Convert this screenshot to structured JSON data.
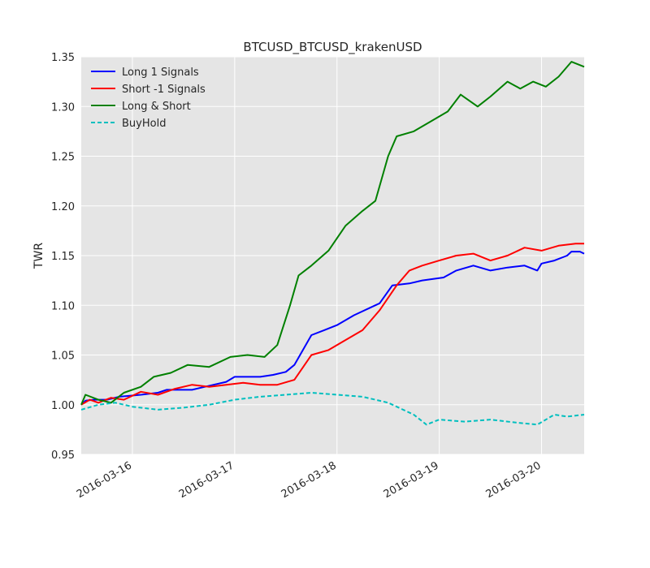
{
  "chart_data": {
    "type": "line",
    "title": "BTCUSD_BTCUSD_krakenUSD",
    "xlabel": "",
    "ylabel": "TWR",
    "xlim": [
      "2016-03-15 12:00",
      "2016-03-20 10:00"
    ],
    "ylim": [
      0.95,
      1.35
    ],
    "grid": true,
    "background": "#e5e5e5",
    "legend_position": "top-left",
    "x_ticks": [
      "2016-03-16",
      "2016-03-17",
      "2016-03-18",
      "2016-03-19",
      "2016-03-20"
    ],
    "y_ticks": [
      "0.95",
      "1.00",
      "1.05",
      "1.10",
      "1.15",
      "1.20",
      "1.25",
      "1.30",
      "1.35"
    ],
    "series": [
      {
        "name": "Long 1 Signals",
        "color": "#0000ff",
        "style": "solid",
        "points": [
          [
            "2016-03-15 12:00",
            1.0
          ],
          [
            "2016-03-15 13:00",
            1.004
          ],
          [
            "2016-03-15 15:00",
            1.005
          ],
          [
            "2016-03-15 18:00",
            1.005
          ],
          [
            "2016-03-15 21:00",
            1.008
          ],
          [
            "2016-03-16 02:00",
            1.01
          ],
          [
            "2016-03-16 06:00",
            1.012
          ],
          [
            "2016-03-16 08:00",
            1.015
          ],
          [
            "2016-03-16 14:00",
            1.015
          ],
          [
            "2016-03-16 17:00",
            1.018
          ],
          [
            "2016-03-16 22:00",
            1.023
          ],
          [
            "2016-03-17 00:00",
            1.028
          ],
          [
            "2016-03-17 06:00",
            1.028
          ],
          [
            "2016-03-17 09:00",
            1.03
          ],
          [
            "2016-03-17 12:00",
            1.033
          ],
          [
            "2016-03-17 14:00",
            1.04
          ],
          [
            "2016-03-17 16:00",
            1.055
          ],
          [
            "2016-03-17 18:00",
            1.07
          ],
          [
            "2016-03-17 21:00",
            1.075
          ],
          [
            "2016-03-18 00:00",
            1.08
          ],
          [
            "2016-03-18 04:00",
            1.09
          ],
          [
            "2016-03-18 08:00",
            1.098
          ],
          [
            "2016-03-18 10:00",
            1.102
          ],
          [
            "2016-03-18 13:00",
            1.12
          ],
          [
            "2016-03-18 17:00",
            1.122
          ],
          [
            "2016-03-18 20:00",
            1.125
          ],
          [
            "2016-03-19 01:00",
            1.128
          ],
          [
            "2016-03-19 04:00",
            1.135
          ],
          [
            "2016-03-19 08:00",
            1.14
          ],
          [
            "2016-03-19 12:00",
            1.135
          ],
          [
            "2016-03-19 16:00",
            1.138
          ],
          [
            "2016-03-19 20:00",
            1.14
          ],
          [
            "2016-03-19 23:00",
            1.135
          ],
          [
            "2016-03-20 00:00",
            1.142
          ],
          [
            "2016-03-20 03:00",
            1.145
          ],
          [
            "2016-03-20 06:00",
            1.15
          ],
          [
            "2016-03-20 07:00",
            1.154
          ],
          [
            "2016-03-20 09:00",
            1.154
          ],
          [
            "2016-03-20 10:00",
            1.152
          ]
        ]
      },
      {
        "name": "Short -1 Signals",
        "color": "#ff0000",
        "style": "solid",
        "points": [
          [
            "2016-03-15 12:00",
            1.0
          ],
          [
            "2016-03-15 14:00",
            1.005
          ],
          [
            "2016-03-15 16:00",
            1.002
          ],
          [
            "2016-03-15 19:00",
            1.007
          ],
          [
            "2016-03-15 22:00",
            1.005
          ],
          [
            "2016-03-16 02:00",
            1.013
          ],
          [
            "2016-03-16 06:00",
            1.01
          ],
          [
            "2016-03-16 10:00",
            1.016
          ],
          [
            "2016-03-16 14:00",
            1.02
          ],
          [
            "2016-03-16 18:00",
            1.018
          ],
          [
            "2016-03-16 22:00",
            1.02
          ],
          [
            "2016-03-17 02:00",
            1.022
          ],
          [
            "2016-03-17 06:00",
            1.02
          ],
          [
            "2016-03-17 10:00",
            1.02
          ],
          [
            "2016-03-17 14:00",
            1.025
          ],
          [
            "2016-03-17 18:00",
            1.05
          ],
          [
            "2016-03-17 22:00",
            1.055
          ],
          [
            "2016-03-18 02:00",
            1.065
          ],
          [
            "2016-03-18 06:00",
            1.075
          ],
          [
            "2016-03-18 10:00",
            1.095
          ],
          [
            "2016-03-18 14:00",
            1.12
          ],
          [
            "2016-03-18 17:00",
            1.135
          ],
          [
            "2016-03-18 20:00",
            1.14
          ],
          [
            "2016-03-19 00:00",
            1.145
          ],
          [
            "2016-03-19 04:00",
            1.15
          ],
          [
            "2016-03-19 08:00",
            1.152
          ],
          [
            "2016-03-19 12:00",
            1.145
          ],
          [
            "2016-03-19 16:00",
            1.15
          ],
          [
            "2016-03-19 20:00",
            1.158
          ],
          [
            "2016-03-20 00:00",
            1.155
          ],
          [
            "2016-03-20 04:00",
            1.16
          ],
          [
            "2016-03-20 08:00",
            1.162
          ],
          [
            "2016-03-20 10:00",
            1.162
          ]
        ]
      },
      {
        "name": "Long & Short",
        "color": "#008000",
        "style": "solid",
        "points": [
          [
            "2016-03-15 12:00",
            1.0
          ],
          [
            "2016-03-15 13:00",
            1.01
          ],
          [
            "2016-03-15 16:00",
            1.005
          ],
          [
            "2016-03-15 19:00",
            1.002
          ],
          [
            "2016-03-15 22:00",
            1.012
          ],
          [
            "2016-03-16 02:00",
            1.018
          ],
          [
            "2016-03-16 05:00",
            1.028
          ],
          [
            "2016-03-16 09:00",
            1.032
          ],
          [
            "2016-03-16 13:00",
            1.04
          ],
          [
            "2016-03-16 18:00",
            1.038
          ],
          [
            "2016-03-16 23:00",
            1.048
          ],
          [
            "2016-03-17 03:00",
            1.05
          ],
          [
            "2016-03-17 07:00",
            1.048
          ],
          [
            "2016-03-17 10:00",
            1.06
          ],
          [
            "2016-03-17 13:00",
            1.1
          ],
          [
            "2016-03-17 15:00",
            1.13
          ],
          [
            "2016-03-17 18:00",
            1.14
          ],
          [
            "2016-03-17 22:00",
            1.155
          ],
          [
            "2016-03-18 02:00",
            1.18
          ],
          [
            "2016-03-18 06:00",
            1.195
          ],
          [
            "2016-03-18 09:00",
            1.205
          ],
          [
            "2016-03-18 12:00",
            1.25
          ],
          [
            "2016-03-18 14:00",
            1.27
          ],
          [
            "2016-03-18 18:00",
            1.275
          ],
          [
            "2016-03-18 22:00",
            1.285
          ],
          [
            "2016-03-19 02:00",
            1.295
          ],
          [
            "2016-03-19 05:00",
            1.312
          ],
          [
            "2016-03-19 09:00",
            1.3
          ],
          [
            "2016-03-19 12:00",
            1.31
          ],
          [
            "2016-03-19 16:00",
            1.325
          ],
          [
            "2016-03-19 19:00",
            1.318
          ],
          [
            "2016-03-19 22:00",
            1.325
          ],
          [
            "2016-03-20 01:00",
            1.32
          ],
          [
            "2016-03-20 04:00",
            1.33
          ],
          [
            "2016-03-20 07:00",
            1.345
          ],
          [
            "2016-03-20 10:00",
            1.34
          ]
        ]
      },
      {
        "name": "BuyHold",
        "color": "#00bfbf",
        "style": "dashed",
        "points": [
          [
            "2016-03-15 12:00",
            0.995
          ],
          [
            "2016-03-15 16:00",
            1.0
          ],
          [
            "2016-03-15 20:00",
            1.002
          ],
          [
            "2016-03-16 00:00",
            0.998
          ],
          [
            "2016-03-16 06:00",
            0.995
          ],
          [
            "2016-03-16 12:00",
            0.997
          ],
          [
            "2016-03-16 18:00",
            1.0
          ],
          [
            "2016-03-17 00:00",
            1.005
          ],
          [
            "2016-03-17 06:00",
            1.008
          ],
          [
            "2016-03-17 12:00",
            1.01
          ],
          [
            "2016-03-17 18:00",
            1.012
          ],
          [
            "2016-03-18 00:00",
            1.01
          ],
          [
            "2016-03-18 06:00",
            1.008
          ],
          [
            "2016-03-18 12:00",
            1.002
          ],
          [
            "2016-03-18 18:00",
            0.99
          ],
          [
            "2016-03-18 21:00",
            0.98
          ],
          [
            "2016-03-19 00:00",
            0.985
          ],
          [
            "2016-03-19 06:00",
            0.983
          ],
          [
            "2016-03-19 12:00",
            0.985
          ],
          [
            "2016-03-19 18:00",
            0.982
          ],
          [
            "2016-03-19 23:00",
            0.98
          ],
          [
            "2016-03-20 03:00",
            0.99
          ],
          [
            "2016-03-20 06:00",
            0.988
          ],
          [
            "2016-03-20 10:00",
            0.99
          ]
        ]
      }
    ]
  }
}
